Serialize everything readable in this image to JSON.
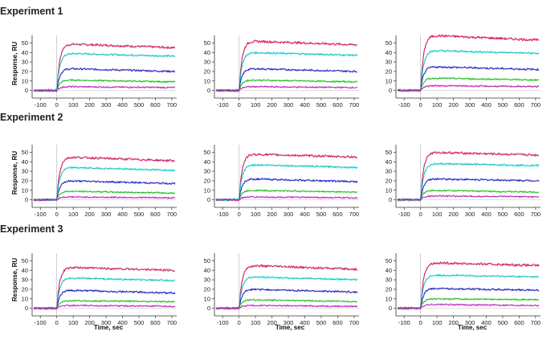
{
  "figure": {
    "experiments": [
      "Experiment 1",
      "Experiment 2",
      "Experiment 3"
    ],
    "xlabel": "Time, sec",
    "ylabel": "Response, RU"
  },
  "colors": [
    "#ee2a7b",
    "#2ee6e6",
    "#3333dd",
    "#33dd33",
    "#dd33dd"
  ],
  "chart_data": [
    {
      "type": "line",
      "experiment": "Experiment 1",
      "xlim": [
        -150,
        730
      ],
      "ylim": [
        -8,
        58
      ],
      "xticks": [
        -100,
        0,
        100,
        200,
        300,
        400,
        500,
        600,
        700
      ],
      "yticks": [
        0,
        10,
        20,
        30,
        40,
        50
      ],
      "series": [
        {
          "plateau": 49,
          "end": 45
        },
        {
          "plateau": 39,
          "end": 36
        },
        {
          "plateau": 23,
          "end": 20
        },
        {
          "plateau": 11,
          "end": 9
        },
        {
          "plateau": 4,
          "end": 3
        }
      ]
    },
    {
      "type": "line",
      "experiment": "Experiment 1",
      "xlim": [
        -150,
        730
      ],
      "ylim": [
        -8,
        58
      ],
      "xticks": [
        -100,
        0,
        100,
        200,
        300,
        400,
        500,
        600,
        700
      ],
      "yticks": [
        0,
        10,
        20,
        30,
        40,
        50
      ],
      "series": [
        {
          "plateau": 52,
          "end": 48
        },
        {
          "plateau": 40,
          "end": 37
        },
        {
          "plateau": 23,
          "end": 20
        },
        {
          "plateau": 11,
          "end": 9
        },
        {
          "plateau": 4,
          "end": 3
        }
      ]
    },
    {
      "type": "line",
      "experiment": "Experiment 1",
      "xlim": [
        -150,
        730
      ],
      "ylim": [
        -8,
        58
      ],
      "xticks": [
        -100,
        0,
        100,
        200,
        300,
        400,
        500,
        600,
        700
      ],
      "yticks": [
        0,
        10,
        20,
        30,
        40,
        50
      ],
      "series": [
        {
          "plateau": 58,
          "end": 53
        },
        {
          "plateau": 42,
          "end": 39
        },
        {
          "plateau": 25,
          "end": 22
        },
        {
          "plateau": 13,
          "end": 11
        },
        {
          "plateau": 5,
          "end": 4
        }
      ]
    },
    {
      "type": "line",
      "experiment": "Experiment 2",
      "xlim": [
        -150,
        730
      ],
      "ylim": [
        -8,
        58
      ],
      "xticks": [
        -100,
        0,
        100,
        200,
        300,
        400,
        500,
        600,
        700
      ],
      "yticks": [
        0,
        10,
        20,
        30,
        40,
        50
      ],
      "series": [
        {
          "plateau": 45,
          "end": 41
        },
        {
          "plateau": 34,
          "end": 31
        },
        {
          "plateau": 20,
          "end": 17
        },
        {
          "plateau": 9,
          "end": 7
        },
        {
          "plateau": 3,
          "end": 2
        }
      ]
    },
    {
      "type": "line",
      "experiment": "Experiment 2",
      "xlim": [
        -150,
        730
      ],
      "ylim": [
        -8,
        58
      ],
      "xticks": [
        -100,
        0,
        100,
        200,
        300,
        400,
        500,
        600,
        700
      ],
      "yticks": [
        0,
        10,
        20,
        30,
        40,
        50
      ],
      "series": [
        {
          "plateau": 48,
          "end": 45
        },
        {
          "plateau": 37,
          "end": 34
        },
        {
          "plateau": 22,
          "end": 19
        },
        {
          "plateau": 10,
          "end": 8
        },
        {
          "plateau": 3,
          "end": 2
        }
      ]
    },
    {
      "type": "line",
      "experiment": "Experiment 2",
      "xlim": [
        -150,
        730
      ],
      "ylim": [
        -8,
        58
      ],
      "xticks": [
        -100,
        0,
        100,
        200,
        300,
        400,
        500,
        600,
        700
      ],
      "yticks": [
        0,
        10,
        20,
        30,
        40,
        50
      ],
      "series": [
        {
          "plateau": 50,
          "end": 47
        },
        {
          "plateau": 38,
          "end": 36
        },
        {
          "plateau": 22,
          "end": 20
        },
        {
          "plateau": 10,
          "end": 8
        },
        {
          "plateau": 4,
          "end": 3
        }
      ]
    },
    {
      "type": "line",
      "experiment": "Experiment 3",
      "xlim": [
        -150,
        730
      ],
      "ylim": [
        -8,
        58
      ],
      "xticks": [
        -100,
        0,
        100,
        200,
        300,
        400,
        500,
        600,
        700
      ],
      "yticks": [
        0,
        10,
        20,
        30,
        40,
        50
      ],
      "series": [
        {
          "plateau": 43,
          "end": 40
        },
        {
          "plateau": 32,
          "end": 29
        },
        {
          "plateau": 19,
          "end": 16
        },
        {
          "plateau": 8,
          "end": 7
        },
        {
          "plateau": 3,
          "end": 2
        }
      ]
    },
    {
      "type": "line",
      "experiment": "Experiment 3",
      "xlim": [
        -150,
        730
      ],
      "ylim": [
        -8,
        58
      ],
      "xticks": [
        -100,
        0,
        100,
        200,
        300,
        400,
        500,
        600,
        700
      ],
      "yticks": [
        0,
        10,
        20,
        30,
        40,
        50
      ],
      "series": [
        {
          "plateau": 45,
          "end": 41
        },
        {
          "plateau": 33,
          "end": 30
        },
        {
          "plateau": 20,
          "end": 17
        },
        {
          "plateau": 9,
          "end": 7
        },
        {
          "plateau": 3,
          "end": 2
        }
      ]
    },
    {
      "type": "line",
      "experiment": "Experiment 3",
      "xlim": [
        -150,
        730
      ],
      "ylim": [
        -8,
        58
      ],
      "xticks": [
        -100,
        0,
        100,
        200,
        300,
        400,
        500,
        600,
        700
      ],
      "yticks": [
        0,
        10,
        20,
        30,
        40,
        50
      ],
      "series": [
        {
          "plateau": 48,
          "end": 45
        },
        {
          "plateau": 35,
          "end": 33
        },
        {
          "plateau": 21,
          "end": 19
        },
        {
          "plateau": 10,
          "end": 9
        },
        {
          "plateau": 4,
          "end": 3
        }
      ]
    }
  ]
}
